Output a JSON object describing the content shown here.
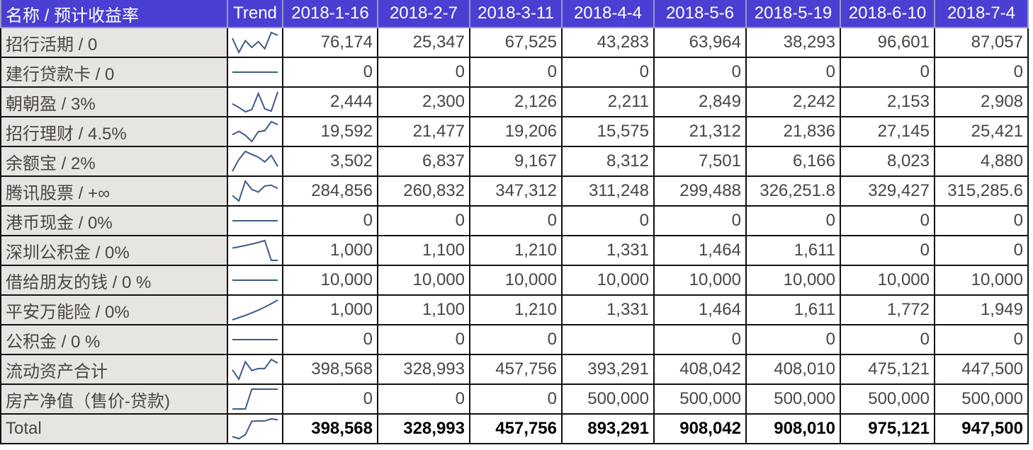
{
  "header": {
    "name": "名称 / 预计收益率",
    "trend": "Trend",
    "dates": [
      "2018-1-16",
      "2018-2-7",
      "2018-3-11",
      "2018-4-4",
      "2018-5-6",
      "2018-5-19",
      "2018-6-10",
      "2018-7-4"
    ]
  },
  "rows": [
    {
      "name": "招行活期 / 0",
      "values": [
        "76,174",
        "25,347",
        "67,525",
        "43,283",
        "63,964",
        "38,293",
        "96,601",
        "87,057"
      ]
    },
    {
      "name": "建行贷款卡 / 0",
      "values": [
        "0",
        "0",
        "0",
        "0",
        "0",
        "0",
        "0",
        "0"
      ]
    },
    {
      "name": "朝朝盈 / 3%",
      "values": [
        "2,444",
        "2,300",
        "2,126",
        "2,211",
        "2,849",
        "2,242",
        "2,153",
        "2,908"
      ]
    },
    {
      "name": "招行理财  / 4.5%",
      "values": [
        "19,592",
        "21,477",
        "19,206",
        "15,575",
        "21,312",
        "21,836",
        "27,145",
        "25,421"
      ]
    },
    {
      "name": "余额宝 / 2%",
      "values": [
        "3,502",
        "6,837",
        "9,167",
        "8,312",
        "7,501",
        "6,166",
        "8,023",
        "4,880"
      ]
    },
    {
      "name": "腾讯股票 / +∞",
      "values": [
        "284,856",
        "260,832",
        "347,312",
        "311,248",
        "299,488",
        "326,251.8",
        "329,427",
        "315,285.6"
      ]
    },
    {
      "name": "港币现金 / 0%",
      "values": [
        "0",
        "0",
        "0",
        "0",
        "0",
        "0",
        "0",
        "0"
      ]
    },
    {
      "name": "深圳公积金 / 0%",
      "values": [
        "1,000",
        "1,100",
        "1,210",
        "1,331",
        "1,464",
        "1,611",
        "0",
        "0"
      ]
    },
    {
      "name": "借给朋友的钱 / 0 %",
      "values": [
        "10,000",
        "10,000",
        "10,000",
        "10,000",
        "10,000",
        "10,000",
        "10,000",
        "10,000"
      ]
    },
    {
      "name": "平安万能险 / 0%",
      "values": [
        "1,000",
        "1,100",
        "1,210",
        "1,331",
        "1,464",
        "1,611",
        "1,772",
        "1,949"
      ]
    },
    {
      "name": "公积金 / 0 %",
      "values": [
        "0",
        "0",
        "0",
        "",
        "0",
        "0",
        "0",
        "0"
      ]
    },
    {
      "name": "流动资产合计",
      "values": [
        "398,568",
        "328,993",
        "457,756",
        "393,291",
        "408,042",
        "408,010",
        "475,121",
        "447,500"
      ]
    },
    {
      "name": "房产净值（售价-贷款)",
      "values": [
        "0",
        "0",
        "0",
        "500,000",
        "500,000",
        "500,000",
        "500,000",
        "500,000"
      ]
    },
    {
      "name": "Total",
      "values": [
        "398,568",
        "328,993",
        "457,756",
        "893,291",
        "908,042",
        "908,010",
        "975,121",
        "947,500"
      ],
      "total": true
    }
  ],
  "colors": {
    "header_bg": "#4a3fd2",
    "sparkline": "#3f5a86",
    "name_bg": "#e7e5e2"
  }
}
